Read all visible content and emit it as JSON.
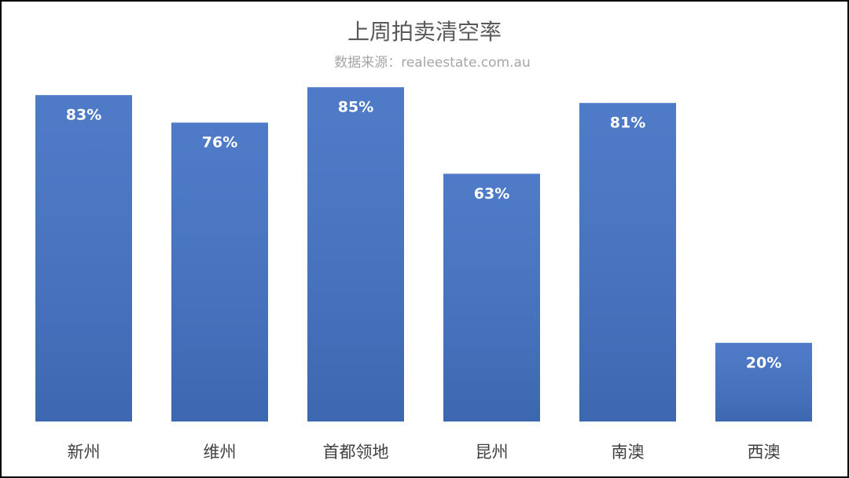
{
  "chart_data": {
    "type": "bar",
    "title": "上周拍卖清空率",
    "subtitle": "数据来源：realeestate.com.au",
    "categories": [
      "新州",
      "维州",
      "首都领地",
      "昆州",
      "南澳",
      "西澳"
    ],
    "values": [
      83,
      76,
      85,
      63,
      81,
      20
    ],
    "value_labels": [
      "83%",
      "76%",
      "85%",
      "63%",
      "81%",
      "20%"
    ],
    "color": "#4472c4",
    "ylim": [
      0,
      100
    ]
  }
}
